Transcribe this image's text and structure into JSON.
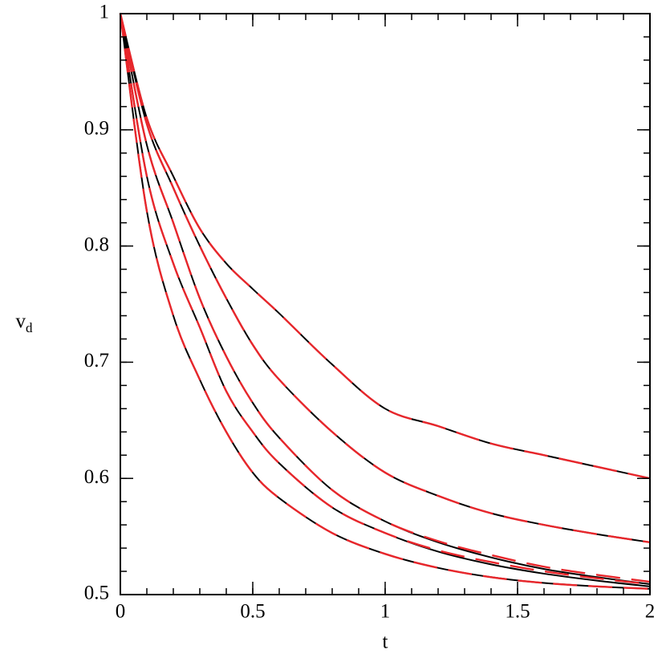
{
  "chart_data": {
    "type": "line",
    "xlabel": "t",
    "ylabel": {
      "text": "v",
      "subscript": "d"
    },
    "x": [
      0,
      0.1,
      0.2,
      0.3,
      0.4,
      0.5,
      0.6,
      0.8,
      1.0,
      1.2,
      1.4,
      1.6,
      1.8,
      2.0
    ],
    "series": [
      {
        "color": "#000000",
        "dashed": false,
        "values": [
          1,
          0.91,
          0.86,
          0.815,
          0.785,
          0.763,
          0.742,
          0.698,
          0.66,
          0.645,
          0.63,
          0.62,
          0.61,
          0.6
        ]
      },
      {
        "color": "#000000",
        "dashed": false,
        "values": [
          1,
          0.905,
          0.85,
          0.8,
          0.755,
          0.715,
          0.685,
          0.64,
          0.605,
          0.585,
          0.57,
          0.56,
          0.552,
          0.545
        ]
      },
      {
        "color": "#000000",
        "dashed": false,
        "values": [
          1,
          0.887,
          0.82,
          0.755,
          0.705,
          0.665,
          0.635,
          0.59,
          0.563,
          0.545,
          0.532,
          0.522,
          0.515,
          0.509
        ]
      },
      {
        "color": "#000000",
        "dashed": false,
        "values": [
          1,
          0.86,
          0.785,
          0.73,
          0.675,
          0.64,
          0.613,
          0.575,
          0.553,
          0.537,
          0.526,
          0.518,
          0.512,
          0.507
        ]
      },
      {
        "color": "#000000",
        "dashed": false,
        "values": [
          1,
          0.83,
          0.74,
          0.685,
          0.64,
          0.605,
          0.583,
          0.553,
          0.535,
          0.523,
          0.515,
          0.51,
          0.507,
          0.505
        ]
      },
      {
        "color": "#e8262b",
        "dashed": true,
        "values": [
          1,
          0.91,
          0.86,
          0.815,
          0.785,
          0.763,
          0.742,
          0.698,
          0.66,
          0.645,
          0.63,
          0.62,
          0.61,
          0.6
        ]
      },
      {
        "color": "#e8262b",
        "dashed": true,
        "values": [
          1,
          0.905,
          0.85,
          0.8,
          0.755,
          0.715,
          0.685,
          0.64,
          0.605,
          0.585,
          0.57,
          0.56,
          0.552,
          0.545
        ]
      },
      {
        "color": "#e8262b",
        "dashed": true,
        "values": [
          1,
          0.887,
          0.82,
          0.755,
          0.705,
          0.665,
          0.635,
          0.59,
          0.563,
          0.546,
          0.534,
          0.524,
          0.517,
          0.511
        ]
      },
      {
        "color": "#e8262b",
        "dashed": true,
        "values": [
          1,
          0.86,
          0.785,
          0.73,
          0.675,
          0.64,
          0.613,
          0.575,
          0.553,
          0.538,
          0.528,
          0.52,
          0.514,
          0.509
        ]
      },
      {
        "color": "#e8262b",
        "dashed": true,
        "values": [
          1,
          0.83,
          0.74,
          0.685,
          0.64,
          0.605,
          0.583,
          0.553,
          0.535,
          0.523,
          0.515,
          0.51,
          0.507,
          0.505
        ]
      }
    ],
    "xlim": [
      0,
      2
    ],
    "xticks": [
      0,
      0.5,
      1,
      1.5,
      2
    ],
    "xminor": 0.1,
    "ylim": [
      0.5,
      1
    ],
    "yticks": [
      0.5,
      0.6,
      0.7,
      0.8,
      0.9,
      1
    ],
    "yminor": 0.02
  }
}
